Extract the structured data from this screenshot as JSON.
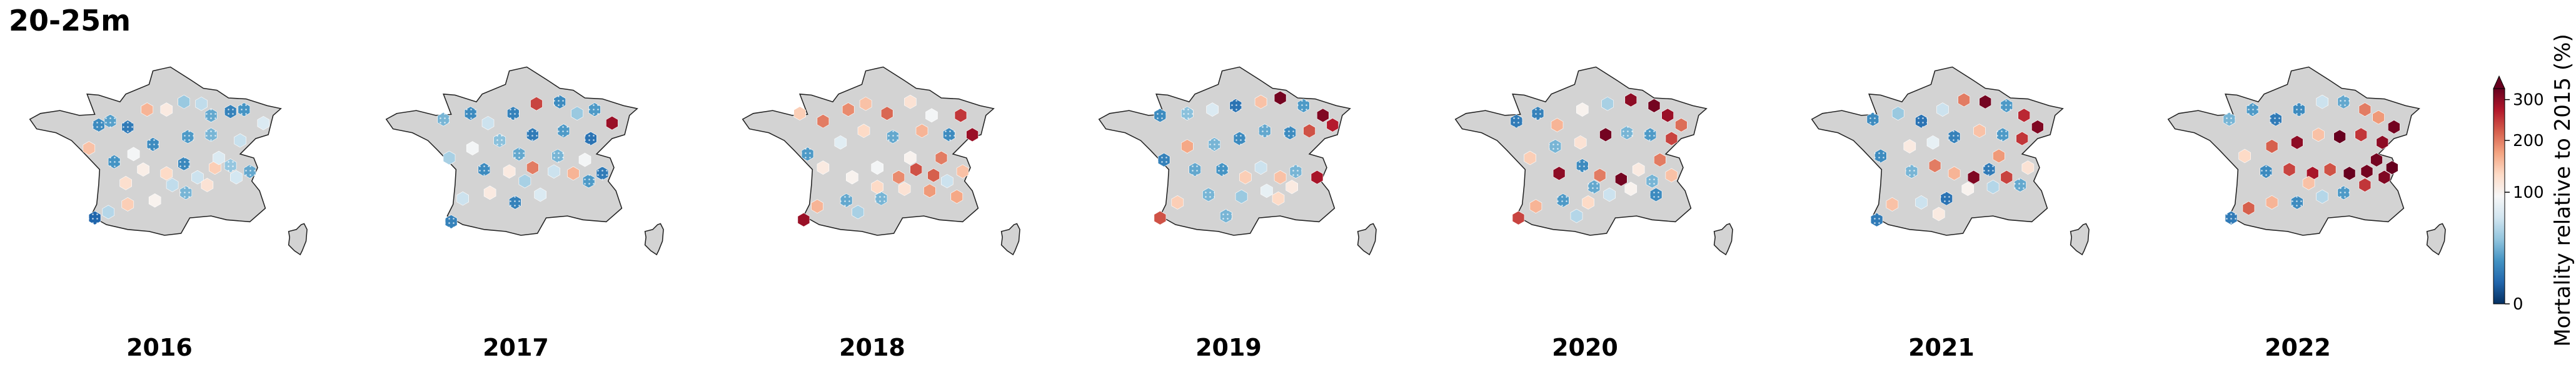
{
  "title": "20-25m",
  "land_color": "#d3d3d3",
  "border_color": "#222222",
  "colormap": [
    "#053061",
    "#2166ac",
    "#4393c3",
    "#92c5de",
    "#d1e5f0",
    "#f7f7f7",
    "#fddbc7",
    "#f4a582",
    "#d6604d",
    "#b2182b",
    "#67001f"
  ],
  "colorbar": {
    "label": "Mortality relative to 2015 (%)",
    "ticks": [
      "0",
      "100",
      "200",
      "300"
    ],
    "tick_values": [
      0,
      100,
      200,
      300
    ],
    "range": [
      0,
      330
    ],
    "scale": "power",
    "extend": "max"
  },
  "hatch_rule": "values below 40% are drawn with dotted hatching",
  "chart_data": {
    "type": "hexbin-map",
    "region": "Metropolitan France (incl. Corsica)",
    "years": [
      {
        "year": "2016",
        "cells": [
          [
            -1.2,
            48.1,
            15
          ],
          [
            -0.6,
            48.3,
            22
          ],
          [
            0.3,
            48.0,
            10
          ],
          [
            1.3,
            48.9,
            160
          ],
          [
            2.3,
            48.9,
            110
          ],
          [
            3.2,
            49.3,
            40
          ],
          [
            4.1,
            49.2,
            55
          ],
          [
            4.6,
            48.6,
            25
          ],
          [
            5.6,
            48.8,
            12
          ],
          [
            6.3,
            48.9,
            18
          ],
          [
            7.3,
            48.2,
            70
          ],
          [
            6.1,
            47.3,
            58
          ],
          [
            4.6,
            47.6,
            30
          ],
          [
            3.4,
            47.5,
            20
          ],
          [
            1.6,
            47.1,
            15
          ],
          [
            0.6,
            46.6,
            90
          ],
          [
            -1.7,
            46.9,
            150
          ],
          [
            -0.4,
            46.2,
            18
          ],
          [
            1.1,
            45.8,
            105
          ],
          [
            2.3,
            45.6,
            130
          ],
          [
            3.2,
            46.1,
            14
          ],
          [
            3.9,
            45.4,
            60
          ],
          [
            4.8,
            45.9,
            140
          ],
          [
            5.6,
            46.0,
            38
          ],
          [
            5.9,
            45.4,
            65
          ],
          [
            4.4,
            45.0,
            120
          ],
          [
            3.3,
            44.6,
            30
          ],
          [
            1.7,
            44.2,
            100
          ],
          [
            0.3,
            44.0,
            140
          ],
          [
            -0.7,
            43.6,
            50
          ],
          [
            -1.4,
            43.3,
            5
          ],
          [
            2.6,
            45.0,
            55
          ],
          [
            5.0,
            46.4,
            70
          ],
          [
            6.6,
            45.7,
            25
          ],
          [
            0.2,
            45.1,
            125
          ]
        ]
      },
      {
        "year": "2017",
        "cells": [
          [
            -1.8,
            48.4,
            30
          ],
          [
            -0.4,
            48.7,
            15
          ],
          [
            0.5,
            48.2,
            60
          ],
          [
            1.8,
            48.7,
            12
          ],
          [
            3.0,
            49.2,
            240
          ],
          [
            4.2,
            49.3,
            15
          ],
          [
            5.1,
            48.7,
            40
          ],
          [
            6.0,
            48.9,
            20
          ],
          [
            6.9,
            48.2,
            290
          ],
          [
            5.8,
            47.4,
            8
          ],
          [
            4.4,
            47.8,
            20
          ],
          [
            2.8,
            47.6,
            10
          ],
          [
            1.1,
            47.3,
            35
          ],
          [
            -0.3,
            46.9,
            90
          ],
          [
            -1.5,
            46.4,
            45
          ],
          [
            0.3,
            45.8,
            15
          ],
          [
            1.6,
            45.7,
            110
          ],
          [
            2.8,
            45.9,
            200
          ],
          [
            3.9,
            45.7,
            60
          ],
          [
            4.9,
            45.6,
            160
          ],
          [
            5.7,
            45.2,
            20
          ],
          [
            6.4,
            45.6,
            10
          ],
          [
            4.1,
            46.5,
            30
          ],
          [
            2.1,
            46.6,
            25
          ],
          [
            0.6,
            44.6,
            110
          ],
          [
            -0.8,
            44.3,
            60
          ],
          [
            1.9,
            44.1,
            12
          ],
          [
            3.2,
            44.5,
            70
          ],
          [
            -1.4,
            43.1,
            12
          ],
          [
            2.4,
            45.2,
            45
          ],
          [
            5.5,
            46.3,
            90
          ]
        ]
      },
      {
        "year": "2018",
        "cells": [
          [
            -1.8,
            48.7,
            140
          ],
          [
            -0.6,
            48.3,
            200
          ],
          [
            0.7,
            48.9,
            190
          ],
          [
            1.6,
            49.2,
            150
          ],
          [
            2.7,
            48.7,
            215
          ],
          [
            3.9,
            49.3,
            120
          ],
          [
            5.0,
            48.6,
            90
          ],
          [
            6.5,
            48.6,
            250
          ],
          [
            7.1,
            47.6,
            290
          ],
          [
            5.9,
            47.6,
            15
          ],
          [
            4.5,
            47.8,
            160
          ],
          [
            3.0,
            47.5,
            25
          ],
          [
            1.5,
            47.8,
            130
          ],
          [
            0.3,
            47.2,
            75
          ],
          [
            -1.4,
            46.6,
            20
          ],
          [
            -0.6,
            45.9,
            110
          ],
          [
            0.9,
            45.4,
            100
          ],
          [
            2.2,
            45.9,
            90
          ],
          [
            3.3,
            45.4,
            190
          ],
          [
            4.2,
            45.8,
            230
          ],
          [
            5.1,
            45.5,
            220
          ],
          [
            5.8,
            45.2,
            60
          ],
          [
            6.6,
            45.7,
            150
          ],
          [
            4.9,
            44.7,
            180
          ],
          [
            3.6,
            44.8,
            120
          ],
          [
            2.4,
            44.3,
            30
          ],
          [
            0.6,
            44.2,
            25
          ],
          [
            -0.9,
            43.9,
            160
          ],
          [
            -1.6,
            43.2,
            290
          ],
          [
            1.2,
            43.6,
            45
          ],
          [
            5.5,
            46.4,
            200
          ],
          [
            3.9,
            46.4,
            100
          ],
          [
            2.2,
            44.9,
            130
          ],
          [
            6.3,
            44.4,
            170
          ]
        ]
      },
      {
        "year": "2019",
        "cells": [
          [
            -1.6,
            48.6,
            15
          ],
          [
            -0.2,
            48.7,
            35
          ],
          [
            1.1,
            48.9,
            70
          ],
          [
            2.3,
            49.1,
            8
          ],
          [
            3.6,
            49.3,
            150
          ],
          [
            4.6,
            49.5,
            320
          ],
          [
            5.8,
            49.1,
            20
          ],
          [
            6.8,
            48.6,
            310
          ],
          [
            7.3,
            48.1,
            270
          ],
          [
            6.1,
            47.8,
            230
          ],
          [
            5.1,
            47.7,
            15
          ],
          [
            3.8,
            47.8,
            25
          ],
          [
            2.5,
            47.4,
            15
          ],
          [
            1.2,
            47.1,
            30
          ],
          [
            -0.2,
            47.0,
            170
          ],
          [
            -1.4,
            46.3,
            12
          ],
          [
            0.2,
            45.8,
            25
          ],
          [
            1.6,
            45.8,
            18
          ],
          [
            2.8,
            45.4,
            140
          ],
          [
            3.6,
            45.9,
            60
          ],
          [
            4.6,
            45.4,
            150
          ],
          [
            5.4,
            45.7,
            30
          ],
          [
            6.5,
            45.4,
            280
          ],
          [
            5.2,
            44.9,
            110
          ],
          [
            3.9,
            44.7,
            80
          ],
          [
            2.6,
            44.4,
            40
          ],
          [
            0.9,
            44.5,
            30
          ],
          [
            -0.7,
            44.1,
            140
          ],
          [
            -1.6,
            43.3,
            230
          ],
          [
            1.8,
            43.4,
            30
          ],
          [
            4.5,
            44.3,
            130
          ]
        ]
      },
      {
        "year": "2020",
        "cells": [
          [
            -1.6,
            48.3,
            10
          ],
          [
            -0.5,
            48.7,
            12
          ],
          [
            0.5,
            48.1,
            160
          ],
          [
            1.8,
            48.9,
            100
          ],
          [
            3.1,
            49.2,
            45
          ],
          [
            4.3,
            49.4,
            300
          ],
          [
            5.5,
            49.1,
            320
          ],
          [
            6.2,
            48.6,
            290
          ],
          [
            6.9,
            48.1,
            210
          ],
          [
            6.4,
            47.4,
            240
          ],
          [
            5.3,
            47.6,
            20
          ],
          [
            4.1,
            47.7,
            30
          ],
          [
            3.0,
            47.6,
            320
          ],
          [
            1.7,
            47.2,
            120
          ],
          [
            0.4,
            47.0,
            30
          ],
          [
            -0.9,
            46.4,
            140
          ],
          [
            0.6,
            45.6,
            300
          ],
          [
            1.8,
            46.0,
            15
          ],
          [
            2.7,
            45.5,
            200
          ],
          [
            3.8,
            45.3,
            320
          ],
          [
            4.7,
            45.8,
            110
          ],
          [
            5.4,
            45.2,
            30
          ],
          [
            6.4,
            45.5,
            150
          ],
          [
            4.3,
            44.8,
            100
          ],
          [
            3.2,
            44.5,
            60
          ],
          [
            2.1,
            44.1,
            130
          ],
          [
            0.8,
            44.2,
            20
          ],
          [
            -0.6,
            43.9,
            160
          ],
          [
            -1.5,
            43.3,
            240
          ],
          [
            1.5,
            43.4,
            50
          ],
          [
            5.6,
            44.5,
            15
          ],
          [
            5.8,
            46.3,
            200
          ],
          [
            2.4,
            44.9,
            25
          ]
        ]
      },
      {
        "year": "2021",
        "cells": [
          [
            -1.6,
            48.4,
            15
          ],
          [
            -0.3,
            48.7,
            40
          ],
          [
            0.9,
            48.3,
            8
          ],
          [
            2.0,
            48.9,
            60
          ],
          [
            3.1,
            49.4,
            200
          ],
          [
            4.2,
            49.3,
            320
          ],
          [
            5.3,
            49.1,
            20
          ],
          [
            6.2,
            48.6,
            260
          ],
          [
            6.9,
            48.0,
            310
          ],
          [
            6.1,
            47.4,
            250
          ],
          [
            5.1,
            47.6,
            20
          ],
          [
            3.9,
            47.8,
            150
          ],
          [
            2.6,
            47.5,
            12
          ],
          [
            1.5,
            47.2,
            80
          ],
          [
            0.3,
            47.0,
            110
          ],
          [
            -1.2,
            46.5,
            15
          ],
          [
            0.4,
            45.7,
            30
          ],
          [
            1.6,
            46.0,
            200
          ],
          [
            2.6,
            45.6,
            160
          ],
          [
            3.6,
            45.4,
            310
          ],
          [
            4.4,
            45.8,
            10
          ],
          [
            5.3,
            45.4,
            240
          ],
          [
            6.0,
            45.0,
            25
          ],
          [
            6.4,
            45.9,
            120
          ],
          [
            4.6,
            44.9,
            50
          ],
          [
            3.3,
            44.8,
            100
          ],
          [
            2.2,
            44.3,
            8
          ],
          [
            0.9,
            44.1,
            60
          ],
          [
            -0.6,
            44.0,
            150
          ],
          [
            -1.4,
            43.2,
            10
          ],
          [
            1.8,
            43.5,
            110
          ],
          [
            4.9,
            46.5,
            180
          ]
        ]
      },
      {
        "year": "2022",
        "cells": [
          [
            -1.6,
            48.4,
            30
          ],
          [
            -0.4,
            48.9,
            20
          ],
          [
            0.8,
            48.4,
            10
          ],
          [
            2.0,
            48.9,
            15
          ],
          [
            3.2,
            49.3,
            60
          ],
          [
            4.3,
            49.3,
            25
          ],
          [
            5.4,
            48.9,
            200
          ],
          [
            6.1,
            48.5,
            180
          ],
          [
            6.9,
            48.0,
            320
          ],
          [
            6.3,
            47.2,
            300
          ],
          [
            5.2,
            47.6,
            250
          ],
          [
            4.1,
            47.5,
            330
          ],
          [
            3.0,
            47.6,
            150
          ],
          [
            1.9,
            47.2,
            300
          ],
          [
            0.6,
            47.0,
            220
          ],
          [
            -0.8,
            46.5,
            130
          ],
          [
            0.3,
            45.7,
            15
          ],
          [
            1.5,
            45.8,
            240
          ],
          [
            2.7,
            45.6,
            280
          ],
          [
            3.6,
            45.8,
            230
          ],
          [
            4.6,
            45.6,
            330
          ],
          [
            5.5,
            45.7,
            320
          ],
          [
            6.4,
            45.4,
            310
          ],
          [
            6.8,
            45.9,
            330
          ],
          [
            5.4,
            45.0,
            250
          ],
          [
            4.3,
            44.6,
            20
          ],
          [
            3.2,
            44.4,
            50
          ],
          [
            1.9,
            44.1,
            15
          ],
          [
            0.6,
            44.1,
            160
          ],
          [
            -0.6,
            43.8,
            220
          ],
          [
            -1.5,
            43.3,
            10
          ],
          [
            2.5,
            45.1,
            150
          ],
          [
            6.0,
            46.3,
            320
          ]
        ]
      }
    ]
  }
}
